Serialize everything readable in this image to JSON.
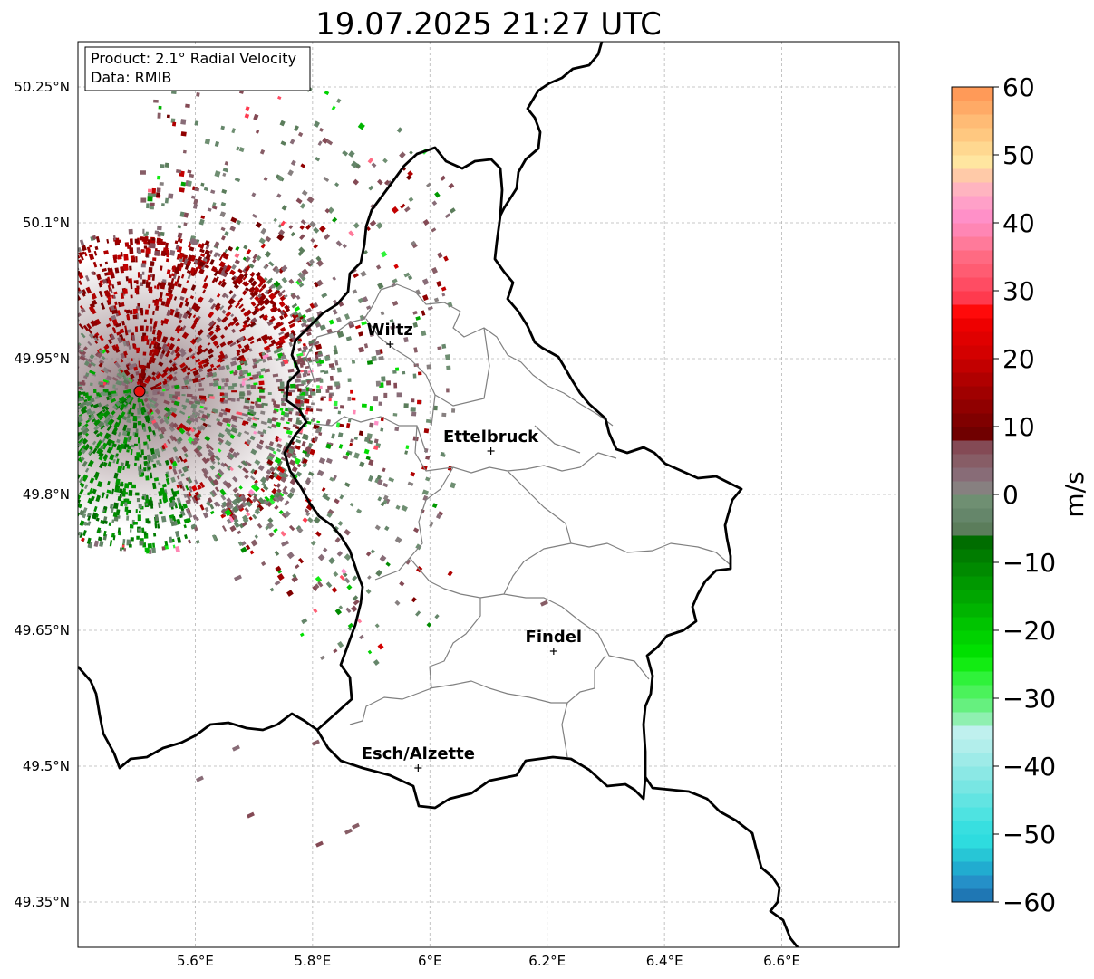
{
  "title": "19.07.2025 21:27 UTC",
  "info_box": {
    "line1": "Product: 2.1° Radial Velocity",
    "line2": "Data: RMIB"
  },
  "x_ticks": [
    {
      "value": 5.6,
      "label": "5.6°E"
    },
    {
      "value": 5.8,
      "label": "5.8°E"
    },
    {
      "value": 6.0,
      "label": "6°E"
    },
    {
      "value": 6.2,
      "label": "6.2°E"
    },
    {
      "value": 6.4,
      "label": "6.4°E"
    },
    {
      "value": 6.6,
      "label": "6.6°E"
    }
  ],
  "y_ticks": [
    {
      "value": 50.25,
      "label": "50.25°N"
    },
    {
      "value": 50.1,
      "label": "50.1°N"
    },
    {
      "value": 49.95,
      "label": "49.95°N"
    },
    {
      "value": 49.8,
      "label": "49.8°N"
    },
    {
      "value": 49.65,
      "label": "49.65°N"
    },
    {
      "value": 49.5,
      "label": "49.5°N"
    },
    {
      "value": 49.35,
      "label": "49.35°N"
    }
  ],
  "extent": {
    "lon_min": 5.4,
    "lon_max": 6.8,
    "lat_min": 49.3,
    "lat_max": 50.3
  },
  "cities": [
    {
      "name": "Wiltz",
      "lon": 5.932,
      "lat": 49.966
    },
    {
      "name": "Ettelbruck",
      "lon": 6.104,
      "lat": 49.848
    },
    {
      "name": "Findel",
      "lon": 6.211,
      "lat": 49.627
    },
    {
      "name": "Esch/Alzette",
      "lon": 5.98,
      "lat": 49.498
    }
  ],
  "radar_site": {
    "lon": 5.505,
    "lat": 49.914,
    "color": "#e8120c"
  },
  "colorbar": {
    "label": "m/s",
    "min": -60,
    "max": 60,
    "ticks": [
      {
        "value": 60,
        "label": "60"
      },
      {
        "value": 50,
        "label": "50"
      },
      {
        "value": 40,
        "label": "40"
      },
      {
        "value": 30,
        "label": "30"
      },
      {
        "value": 20,
        "label": "20"
      },
      {
        "value": 10,
        "label": "10"
      },
      {
        "value": 0,
        "label": "0"
      },
      {
        "value": -10,
        "label": "−10"
      },
      {
        "value": -20,
        "label": "−20"
      },
      {
        "value": -30,
        "label": "−30"
      },
      {
        "value": -40,
        "label": "−40"
      },
      {
        "value": -50,
        "label": "−50"
      },
      {
        "value": -60,
        "label": "−60"
      }
    ],
    "stops": [
      {
        "from": -60,
        "to": -58,
        "color": "#1f77b4"
      },
      {
        "from": -58,
        "to": -56,
        "color": "#2590c8"
      },
      {
        "from": -56,
        "to": -54,
        "color": "#21acd0"
      },
      {
        "from": -54,
        "to": -52,
        "color": "#27c6d6"
      },
      {
        "from": -52,
        "to": -50,
        "color": "#2edcdf"
      },
      {
        "from": -50,
        "to": -48,
        "color": "#38dfe0"
      },
      {
        "from": -48,
        "to": -46,
        "color": "#4ee3e1"
      },
      {
        "from": -46,
        "to": -44,
        "color": "#62e4e2"
      },
      {
        "from": -44,
        "to": -42,
        "color": "#78e6e3"
      },
      {
        "from": -42,
        "to": -40,
        "color": "#8be8e5"
      },
      {
        "from": -40,
        "to": -38,
        "color": "#9eebe8"
      },
      {
        "from": -38,
        "to": -36,
        "color": "#b2eeeb"
      },
      {
        "from": -36,
        "to": -34,
        "color": "#bff0ee"
      },
      {
        "from": -34,
        "to": -32,
        "color": "#8ff0b0"
      },
      {
        "from": -32,
        "to": -30,
        "color": "#66f07f"
      },
      {
        "from": -30,
        "to": -28,
        "color": "#4bf25b"
      },
      {
        "from": -28,
        "to": -26,
        "color": "#2ff23a"
      },
      {
        "from": -26,
        "to": -24,
        "color": "#12ec12"
      },
      {
        "from": -24,
        "to": -22,
        "color": "#00e000"
      },
      {
        "from": -22,
        "to": -20,
        "color": "#00d200"
      },
      {
        "from": -20,
        "to": -18,
        "color": "#00c400"
      },
      {
        "from": -18,
        "to": -16,
        "color": "#00b400"
      },
      {
        "from": -16,
        "to": -14,
        "color": "#00a600"
      },
      {
        "from": -14,
        "to": -12,
        "color": "#009800"
      },
      {
        "from": -12,
        "to": -10,
        "color": "#008a00"
      },
      {
        "from": -10,
        "to": -8,
        "color": "#007c00"
      },
      {
        "from": -8,
        "to": -6,
        "color": "#006d00"
      },
      {
        "from": -6,
        "to": -4,
        "color": "#5b7d5b"
      },
      {
        "from": -4,
        "to": -2,
        "color": "#65866a"
      },
      {
        "from": -2,
        "to": 0,
        "color": "#6f8f72"
      },
      {
        "from": 0,
        "to": 2,
        "color": "#878080"
      },
      {
        "from": 2,
        "to": 4,
        "color": "#886c77"
      },
      {
        "from": 4,
        "to": 6,
        "color": "#875d66"
      },
      {
        "from": 6,
        "to": 8,
        "color": "#844a55"
      },
      {
        "from": 8,
        "to": 10,
        "color": "#700000"
      },
      {
        "from": 10,
        "to": 12,
        "color": "#800000"
      },
      {
        "from": 12,
        "to": 14,
        "color": "#900000"
      },
      {
        "from": 14,
        "to": 16,
        "color": "#a00000"
      },
      {
        "from": 16,
        "to": 18,
        "color": "#b00000"
      },
      {
        "from": 18,
        "to": 20,
        "color": "#c20000"
      },
      {
        "from": 20,
        "to": 22,
        "color": "#d40000"
      },
      {
        "from": 22,
        "to": 24,
        "color": "#e00000"
      },
      {
        "from": 24,
        "to": 26,
        "color": "#ee0000"
      },
      {
        "from": 26,
        "to": 28,
        "color": "#ff0a0a"
      },
      {
        "from": 28,
        "to": 30,
        "color": "#ff3a4e"
      },
      {
        "from": 30,
        "to": 32,
        "color": "#ff4c63"
      },
      {
        "from": 32,
        "to": 34,
        "color": "#ff5c72"
      },
      {
        "from": 34,
        "to": 36,
        "color": "#ff6a82"
      },
      {
        "from": 36,
        "to": 38,
        "color": "#ff7a9a"
      },
      {
        "from": 38,
        "to": 40,
        "color": "#ff86b4"
      },
      {
        "from": 40,
        "to": 42,
        "color": "#ff90c8"
      },
      {
        "from": 42,
        "to": 44,
        "color": "#ffa0c8"
      },
      {
        "from": 44,
        "to": 46,
        "color": "#ffb4c0"
      },
      {
        "from": 46,
        "to": 48,
        "color": "#ffcaa8"
      },
      {
        "from": 48,
        "to": 50,
        "color": "#ffe6a0"
      },
      {
        "from": 50,
        "to": 52,
        "color": "#ffd890"
      },
      {
        "from": 52,
        "to": 54,
        "color": "#ffc880"
      },
      {
        "from": 54,
        "to": 56,
        "color": "#ffbb75"
      },
      {
        "from": 56,
        "to": 58,
        "color": "#ffaa66"
      },
      {
        "from": 58,
        "to": 60,
        "color": "#ff9a58"
      }
    ]
  }
}
